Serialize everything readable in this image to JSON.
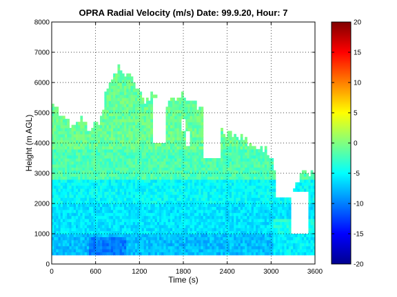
{
  "chart_data": {
    "type": "heatmap",
    "title": "OPRA Radial Velocity (m/s)  Date: 99.9.20, Hour: 7",
    "xlabel": "Time (s)",
    "ylabel": "Height (m AGL)",
    "xlim": [
      0,
      3600
    ],
    "ylim": [
      0,
      8000
    ],
    "x_ticks": [
      "0",
      "600",
      "1200",
      "1800",
      "2400",
      "3000",
      "3600"
    ],
    "y_ticks": [
      "0",
      "1000",
      "2000",
      "3000",
      "4000",
      "5000",
      "6000",
      "7000",
      "8000"
    ],
    "grid": true,
    "colorbar": {
      "range": [
        -20,
        20
      ],
      "colormap": "jet",
      "ticks": [
        "20",
        "15",
        "10",
        "5",
        "0",
        "-5",
        "-10",
        "-15",
        "-20"
      ]
    },
    "data_bottom_height": 300,
    "top_height_profile": {
      "time": [
        0,
        60,
        120,
        180,
        240,
        300,
        360,
        420,
        480,
        540,
        600,
        660,
        700,
        760,
        820,
        880,
        940,
        1000,
        1060,
        1120,
        1200,
        1260,
        1320,
        1400,
        1500,
        1600,
        1700,
        1800,
        1900,
        2000,
        2100,
        2200,
        2300,
        2400,
        2500,
        2600,
        2700,
        2800,
        2900,
        3000,
        3050,
        3100,
        3200,
        3300,
        3400,
        3500,
        3600
      ],
      "height": [
        5200,
        5150,
        4850,
        4700,
        4550,
        4600,
        4750,
        4800,
        4500,
        4450,
        4550,
        4550,
        5200,
        5700,
        6050,
        6400,
        6500,
        6300,
        6300,
        6000,
        5600,
        5350,
        5400,
        5600,
        5300,
        5300,
        5400,
        5500,
        5400,
        5200,
        5000,
        4500,
        4350,
        4300,
        4200,
        4100,
        4000,
        3850,
        3750,
        3600,
        2900,
        2400,
        2300,
        2300,
        2900,
        3000,
        2900
      ]
    },
    "gap_regions": [
      {
        "time": [
          1380,
          1540
        ],
        "height": [
          4000,
          5400
        ]
      },
      {
        "time": [
          1760,
          1800
        ],
        "height": [
          4400,
          4700
        ]
      },
      {
        "time": [
          1830,
          1880
        ],
        "height": [
          3900,
          4300
        ]
      },
      {
        "time": [
          2050,
          2280
        ],
        "height": [
          3500,
          5200
        ]
      },
      {
        "time": [
          3050,
          3250
        ],
        "height": [
          2200,
          2700
        ]
      },
      {
        "time": [
          3250,
          3500
        ],
        "height": [
          1000,
          2300
        ]
      }
    ],
    "velocity_structure": [
      {
        "height": [
          300,
          1000
        ],
        "velocity": -7.5
      },
      {
        "height": [
          1000,
          2000
        ],
        "velocity": -6
      },
      {
        "height": [
          2000,
          2800
        ],
        "velocity": -5
      },
      {
        "height": [
          2800,
          3800
        ],
        "velocity": -2
      },
      {
        "height": [
          3800,
          6600
        ],
        "velocity": -1
      }
    ]
  }
}
